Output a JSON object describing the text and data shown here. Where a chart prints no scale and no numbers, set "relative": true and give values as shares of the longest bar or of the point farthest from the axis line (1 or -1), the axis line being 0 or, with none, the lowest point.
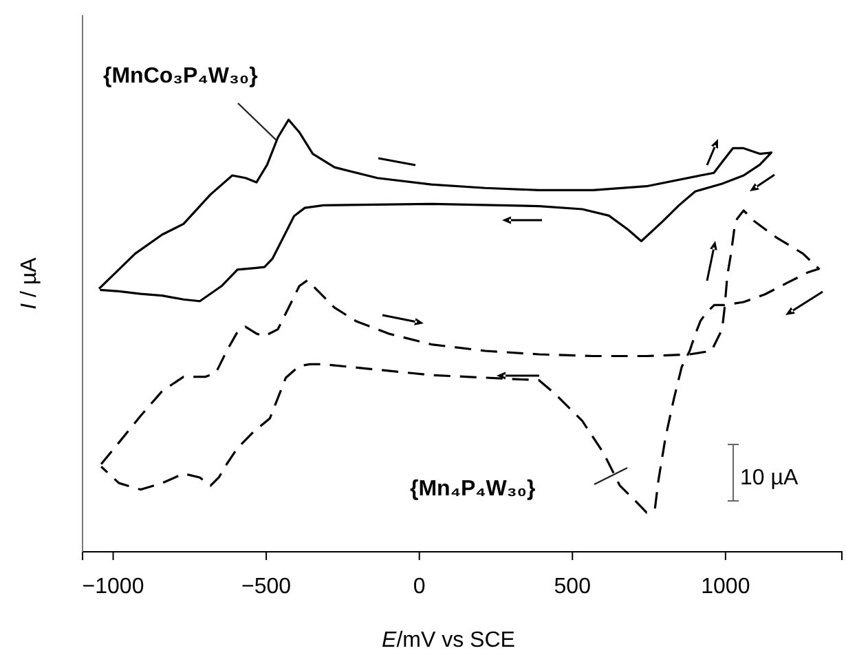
{
  "chart_data": {
    "type": "line",
    "relative": true,
    "xlabel": "E/mV vs SCE",
    "ylabel": "I / µA",
    "tick_labels": "x",
    "grid": false,
    "legend": false,
    "xlim": [
      -1100,
      1380
    ],
    "xticks": [
      {
        "value": -1000,
        "label": "−1000"
      },
      {
        "value": -500,
        "label": "−500"
      },
      0,
      500,
      1000
    ],
    "annotations": [
      "10 µA"
    ],
    "series": [
      {
        "name": "{MnCo₃P₄W₃₀}",
        "color": "#000000",
        "line_style": "solid",
        "x": [
          -1046,
          -928,
          -840,
          -770,
          -682,
          -611,
          -567,
          -532,
          -497,
          -462,
          -427,
          -392,
          -348,
          -277,
          -137,
          39,
          215,
          391,
          567,
          742,
          918,
          962,
          989,
          1024,
          1059,
          1112,
          1150,
          1112,
          1059,
          989,
          901,
          848,
          795,
          725,
          681,
          619,
          532,
          391,
          39,
          -313,
          -374,
          -409,
          -444,
          -480,
          -506,
          -532,
          -594,
          -646,
          -717,
          -770,
          -840,
          -910,
          -981,
          -1043
        ],
        "values": [
          0.609,
          0.69,
          0.734,
          0.759,
          0.827,
          0.871,
          0.865,
          0.855,
          0.896,
          0.959,
          1.0,
          0.971,
          0.921,
          0.89,
          0.865,
          0.85,
          0.842,
          0.837,
          0.837,
          0.846,
          0.871,
          0.877,
          0.902,
          0.934,
          0.934,
          0.921,
          0.924,
          0.896,
          0.871,
          0.852,
          0.834,
          0.802,
          0.765,
          0.719,
          0.746,
          0.778,
          0.793,
          0.8,
          0.805,
          0.802,
          0.796,
          0.777,
          0.728,
          0.678,
          0.659,
          0.657,
          0.653,
          0.615,
          0.58,
          0.584,
          0.593,
          0.597,
          0.603,
          0.606
        ]
      },
      {
        "name": "{Mn₄P₄W₃₀}",
        "color": "#000000",
        "line_style": "dashed",
        "x": [
          -1039,
          -981,
          -910,
          -840,
          -770,
          -699,
          -664,
          -629,
          -594,
          -568,
          -532,
          -506,
          -462,
          -427,
          -392,
          -366,
          -330,
          -277,
          -207,
          -101,
          39,
          215,
          391,
          567,
          742,
          883,
          954,
          989,
          997,
          1006,
          1018,
          1032,
          1059,
          1094,
          1165,
          1253,
          1305,
          1270,
          1200,
          1129,
          1059,
          997,
          963,
          936,
          918,
          901,
          883,
          857,
          831,
          804,
          781,
          769,
          742,
          708,
          655,
          602,
          532,
          444,
          391,
          39,
          -313,
          -357,
          -392,
          -436,
          -488,
          -541,
          -594,
          -629,
          -655,
          -682,
          -717,
          -770,
          -840,
          -910,
          -981,
          -1039
        ],
        "values": [
          0.203,
          0.253,
          0.315,
          0.372,
          0.405,
          0.405,
          0.415,
          0.465,
          0.509,
          0.521,
          0.505,
          0.499,
          0.515,
          0.565,
          0.615,
          0.628,
          0.603,
          0.565,
          0.534,
          0.505,
          0.48,
          0.465,
          0.457,
          0.453,
          0.453,
          0.457,
          0.465,
          0.515,
          0.565,
          0.64,
          0.69,
          0.765,
          0.79,
          0.765,
          0.728,
          0.69,
          0.655,
          0.647,
          0.622,
          0.596,
          0.578,
          0.571,
          0.571,
          0.552,
          0.534,
          0.503,
          0.465,
          0.428,
          0.353,
          0.265,
          0.166,
          0.097,
          0.091,
          0.116,
          0.153,
          0.228,
          0.303,
          0.365,
          0.397,
          0.409,
          0.434,
          0.434,
          0.43,
          0.403,
          0.309,
          0.278,
          0.24,
          0.203,
          0.172,
          0.153,
          0.172,
          0.181,
          0.159,
          0.144,
          0.159,
          0.197
        ]
      }
    ]
  }
}
